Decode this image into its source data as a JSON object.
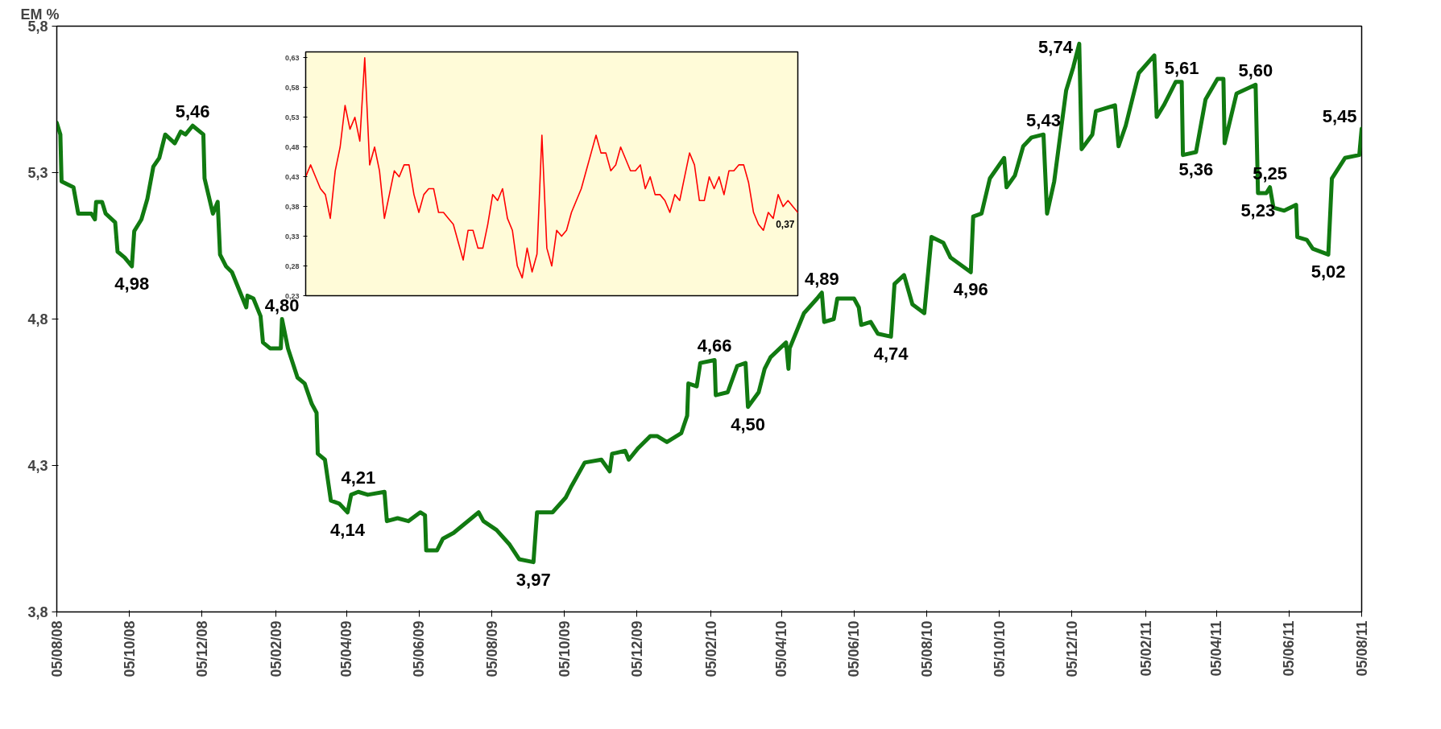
{
  "chart_data": [
    {
      "type": "line",
      "ylabel": "EM %",
      "color": "#117a11",
      "line_style": "solid",
      "grid": false,
      "x": [
        "2008-08-05",
        "2008-08-08",
        "2008-08-09",
        "2008-08-19",
        "2008-08-23",
        "2008-09-03",
        "2008-09-06",
        "2008-09-07",
        "2008-09-12",
        "2008-09-15",
        "2008-09-23",
        "2008-09-25",
        "2008-10-01",
        "2008-10-07",
        "2008-10-09",
        "2008-10-15",
        "2008-10-20",
        "2008-10-25",
        "2008-10-30",
        "2008-11-04",
        "2008-11-12",
        "2008-11-17",
        "2008-11-21",
        "2008-11-27",
        "2008-12-06",
        "2008-12-07",
        "2008-12-14",
        "2008-12-18",
        "2008-12-20",
        "2008-12-25",
        "2008-12-30",
        "2009-01-11",
        "2009-01-12",
        "2009-01-17",
        "2009-01-23",
        "2009-01-25",
        "2009-01-31",
        "2009-02-09",
        "2009-02-10",
        "2009-02-15",
        "2009-02-23",
        "2009-03-01",
        "2009-03-07",
        "2009-03-11",
        "2009-03-12",
        "2009-03-18",
        "2009-03-23",
        "2009-03-30",
        "2009-04-06",
        "2009-04-09",
        "2009-04-15",
        "2009-04-23",
        "2009-05-07",
        "2009-05-09",
        "2009-05-18",
        "2009-05-27",
        "2009-06-06",
        "2009-06-10",
        "2009-06-11",
        "2009-06-20",
        "2009-06-25",
        "2009-07-04",
        "2009-07-25",
        "2009-07-29",
        "2009-08-09",
        "2009-08-20",
        "2009-08-28",
        "2009-09-09",
        "2009-09-12",
        "2009-09-25",
        "2009-10-06",
        "2009-10-11",
        "2009-10-22",
        "2009-11-05",
        "2009-11-12",
        "2009-11-14",
        "2009-11-25",
        "2009-11-28",
        "2009-12-06",
        "2009-12-16",
        "2009-12-22",
        "2009-12-30",
        "2010-01-11",
        "2010-01-16",
        "2010-01-17",
        "2010-01-24",
        "2010-01-27",
        "2010-02-08",
        "2010-02-09",
        "2010-02-19",
        "2010-02-27",
        "2010-03-06",
        "2010-03-08",
        "2010-03-17",
        "2010-03-22",
        "2010-03-27",
        "2010-04-09",
        "2010-04-11",
        "2010-04-12",
        "2010-04-24",
        "2010-05-05",
        "2010-05-09",
        "2010-05-11",
        "2010-05-19",
        "2010-05-22",
        "2010-06-05",
        "2010-06-09",
        "2010-06-11",
        "2010-06-19",
        "2010-06-25",
        "2010-07-06",
        "2010-07-09",
        "2010-07-17",
        "2010-07-24",
        "2010-08-03",
        "2010-08-09",
        "2010-08-19",
        "2010-08-25",
        "2010-09-11",
        "2010-09-13",
        "2010-09-20",
        "2010-09-27",
        "2010-10-09",
        "2010-10-11",
        "2010-10-18",
        "2010-10-25",
        "2010-11-01",
        "2010-11-11",
        "2010-11-14",
        "2010-11-20",
        "2010-11-30",
        "2010-12-06",
        "2010-12-11",
        "2010-12-13",
        "2010-12-22",
        "2010-12-25",
        "2011-01-10",
        "2011-01-13",
        "2011-01-19",
        "2011-01-30",
        "2011-02-12",
        "2011-02-14",
        "2011-02-20",
        "2011-03-02",
        "2011-03-07",
        "2011-03-08",
        "2011-03-19",
        "2011-03-27",
        "2011-04-06",
        "2011-04-11",
        "2011-04-12",
        "2011-04-22",
        "2011-05-08",
        "2011-05-10",
        "2011-05-17",
        "2011-05-20",
        "2011-05-23",
        "2011-06-01",
        "2011-06-11",
        "2011-06-12",
        "2011-06-20",
        "2011-06-25",
        "2011-07-08",
        "2011-07-11",
        "2011-07-22",
        "2011-08-03",
        "2011-08-05"
      ],
      "values": [
        5.47,
        5.43,
        5.27,
        5.25,
        5.16,
        5.16,
        5.14,
        5.2,
        5.2,
        5.16,
        5.13,
        5.03,
        5.01,
        4.98,
        5.1,
        5.14,
        5.21,
        5.32,
        5.35,
        5.43,
        5.4,
        5.44,
        5.43,
        5.46,
        5.43,
        5.28,
        5.16,
        5.2,
        5.02,
        4.98,
        4.96,
        4.84,
        4.88,
        4.87,
        4.81,
        4.72,
        4.7,
        4.7,
        4.8,
        4.7,
        4.6,
        4.58,
        4.51,
        4.48,
        4.34,
        4.32,
        4.18,
        4.17,
        4.14,
        4.2,
        4.21,
        4.2,
        4.21,
        4.11,
        4.12,
        4.11,
        4.14,
        4.13,
        4.01,
        4.01,
        4.05,
        4.07,
        4.14,
        4.11,
        4.08,
        4.03,
        3.98,
        3.97,
        4.14,
        4.14,
        4.19,
        4.23,
        4.31,
        4.32,
        4.28,
        4.34,
        4.35,
        4.32,
        4.36,
        4.4,
        4.4,
        4.38,
        4.41,
        4.47,
        4.58,
        4.57,
        4.65,
        4.66,
        4.54,
        4.55,
        4.64,
        4.65,
        4.5,
        4.55,
        4.63,
        4.67,
        4.72,
        4.63,
        4.7,
        4.82,
        4.87,
        4.89,
        4.79,
        4.8,
        4.87,
        4.87,
        4.84,
        4.78,
        4.79,
        4.75,
        4.74,
        4.92,
        4.95,
        4.85,
        4.82,
        5.08,
        5.06,
        5.01,
        4.96,
        5.15,
        5.16,
        5.28,
        5.35,
        5.25,
        5.29,
        5.39,
        5.42,
        5.43,
        5.16,
        5.27,
        5.58,
        5.66,
        5.74,
        5.38,
        5.43,
        5.51,
        5.53,
        5.39,
        5.46,
        5.64,
        5.7,
        5.49,
        5.53,
        5.61,
        5.61,
        5.36,
        5.37,
        5.55,
        5.62,
        5.62,
        5.4,
        5.57,
        5.6,
        5.23,
        5.23,
        5.25,
        5.18,
        5.17,
        5.19,
        5.08,
        5.07,
        5.04,
        5.02,
        5.28,
        5.35,
        5.36,
        5.45
      ],
      "xlim": [
        "2008-08-05",
        "2011-08-05"
      ],
      "xticks": [
        {
          "value": "2008-08-05",
          "label": "05/08/08"
        },
        {
          "value": "2008-10-05",
          "label": "05/10/08"
        },
        {
          "value": "2008-12-05",
          "label": "05/12/08"
        },
        {
          "value": "2009-02-05",
          "label": "05/02/09"
        },
        {
          "value": "2009-04-05",
          "label": "05/04/09"
        },
        {
          "value": "2009-06-05",
          "label": "05/06/09"
        },
        {
          "value": "2009-08-05",
          "label": "05/08/09"
        },
        {
          "value": "2009-10-05",
          "label": "05/10/09"
        },
        {
          "value": "2009-12-05",
          "label": "05/12/09"
        },
        {
          "value": "2010-02-05",
          "label": "05/02/10"
        },
        {
          "value": "2010-04-05",
          "label": "05/04/10"
        },
        {
          "value": "2010-06-05",
          "label": "05/06/10"
        },
        {
          "value": "2010-08-05",
          "label": "05/08/10"
        },
        {
          "value": "2010-10-05",
          "label": "05/10/10"
        },
        {
          "value": "2010-12-05",
          "label": "05/12/10"
        },
        {
          "value": "2011-02-05",
          "label": "05/02/11"
        },
        {
          "value": "2011-04-05",
          "label": "05/04/11"
        },
        {
          "value": "2011-06-05",
          "label": "05/06/11"
        },
        {
          "value": "2011-08-05",
          "label": "05/08/11"
        }
      ],
      "ylim": [
        3.8,
        5.8
      ],
      "yticks": [
        {
          "value": 3.8,
          "label": "3,8"
        },
        {
          "value": 4.3,
          "label": "4,3"
        },
        {
          "value": 4.8,
          "label": "4,8"
        },
        {
          "value": 5.3,
          "label": "5,3"
        },
        {
          "value": 5.8,
          "label": "5,8"
        }
      ],
      "annotations": [
        {
          "text": "4,98",
          "x": "2008-10-07",
          "y": 4.98
        },
        {
          "text": "5,46",
          "x": "2008-11-27",
          "y": 5.46
        },
        {
          "text": "4,80",
          "x": "2009-02-10",
          "y": 4.8
        },
        {
          "text": "4,14",
          "x": "2009-04-06",
          "y": 4.14
        },
        {
          "text": "4,21",
          "x": "2009-04-15",
          "y": 4.21
        },
        {
          "text": "3,97",
          "x": "2009-09-09",
          "y": 3.97
        },
        {
          "text": "4,66",
          "x": "2010-02-08",
          "y": 4.66
        },
        {
          "text": "4,50",
          "x": "2010-03-08",
          "y": 4.5
        },
        {
          "text": "4,89",
          "x": "2010-05-09",
          "y": 4.89
        },
        {
          "text": "4,74",
          "x": "2010-07-06",
          "y": 4.74
        },
        {
          "text": "4,96",
          "x": "2010-09-11",
          "y": 4.96
        },
        {
          "text": "5,43",
          "x": "2010-11-11",
          "y": 5.43
        },
        {
          "text": "5,74",
          "x": "2010-12-11",
          "y": 5.74
        },
        {
          "text": "5,61",
          "x": "2011-03-07",
          "y": 5.61
        },
        {
          "text": "5,36",
          "x": "2011-03-19",
          "y": 5.37
        },
        {
          "text": "5,60",
          "x": "2011-05-08",
          "y": 5.6
        },
        {
          "text": "5,23",
          "x": "2011-05-10",
          "y": 5.23
        },
        {
          "text": "5,25",
          "x": "2011-05-20",
          "y": 5.25
        },
        {
          "text": "5,02",
          "x": "2011-07-08",
          "y": 5.02
        },
        {
          "text": "5,45",
          "x": "2011-08-05",
          "y": 5.45
        }
      ]
    },
    {
      "type": "line",
      "color": "#ff0000",
      "line_style": "solid",
      "grid": false,
      "tick_labels": "y",
      "categories": [
        null,
        null,
        null,
        null,
        null,
        null,
        null,
        null,
        null,
        null,
        null,
        null,
        null,
        null,
        null,
        null,
        null,
        null,
        null,
        null,
        null,
        null,
        null,
        null,
        null,
        null,
        null,
        null,
        null,
        null,
        null,
        null,
        null,
        null,
        null,
        null,
        null,
        null,
        null,
        null,
        null,
        null,
        null,
        null,
        null,
        null,
        null,
        null,
        null,
        null,
        null,
        null,
        null,
        null,
        null,
        null,
        null,
        null,
        null,
        null,
        null,
        null,
        null,
        null,
        null,
        null,
        null,
        null,
        null,
        null,
        null,
        null,
        null,
        null,
        null,
        null,
        null,
        null,
        null,
        null,
        null,
        null,
        null,
        null,
        null,
        null,
        null,
        null,
        null,
        null,
        null,
        null,
        null,
        null,
        null,
        null,
        null,
        null,
        null,
        null,
        null
      ],
      "values": [
        0.43,
        0.45,
        0.43,
        0.41,
        0.4,
        0.36,
        0.44,
        0.48,
        0.55,
        0.51,
        0.53,
        0.49,
        0.63,
        0.45,
        0.48,
        0.44,
        0.36,
        0.4,
        0.44,
        0.43,
        0.45,
        0.45,
        0.4,
        0.37,
        0.4,
        0.41,
        0.41,
        0.37,
        0.37,
        0.36,
        0.35,
        0.32,
        0.29,
        0.34,
        0.34,
        0.31,
        0.31,
        0.35,
        0.4,
        0.39,
        0.41,
        0.36,
        0.34,
        0.28,
        0.26,
        0.31,
        0.27,
        0.3,
        0.5,
        0.31,
        0.28,
        0.34,
        0.33,
        0.34,
        0.37,
        0.39,
        0.41,
        0.44,
        0.47,
        0.5,
        0.47,
        0.47,
        0.44,
        0.45,
        0.48,
        0.46,
        0.44,
        0.44,
        0.45,
        0.41,
        0.43,
        0.4,
        0.4,
        0.39,
        0.37,
        0.4,
        0.39,
        0.43,
        0.47,
        0.45,
        0.39,
        0.39,
        0.43,
        0.41,
        0.43,
        0.4,
        0.44,
        0.44,
        0.45,
        0.45,
        0.42,
        0.37,
        0.35,
        0.34,
        0.37,
        0.36,
        0.4,
        0.38,
        0.39,
        0.38,
        0.37
      ],
      "ylim": [
        0.23,
        0.64
      ],
      "yticks": [
        {
          "value": 0.23,
          "label": "0,23"
        },
        {
          "value": 0.28,
          "label": "0,28"
        },
        {
          "value": 0.33,
          "label": "0,33"
        },
        {
          "value": 0.38,
          "label": "0,38"
        },
        {
          "value": 0.43,
          "label": "0,43"
        },
        {
          "value": 0.48,
          "label": "0,48"
        },
        {
          "value": 0.53,
          "label": "0,53"
        },
        {
          "value": 0.58,
          "label": "0,58"
        },
        {
          "value": 0.63,
          "label": "0,63"
        }
      ],
      "annotations": [
        "0,37"
      ]
    }
  ]
}
